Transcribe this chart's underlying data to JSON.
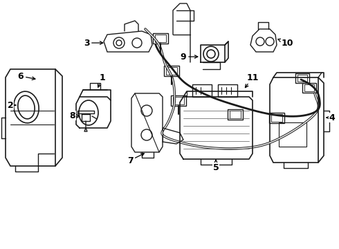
{
  "bg_color": "#ffffff",
  "line_color": "#1a1a1a",
  "figsize": [
    4.9,
    3.6
  ],
  "dpi": 100,
  "components": {
    "label_fontsize": 9,
    "label_fontweight": "bold"
  }
}
